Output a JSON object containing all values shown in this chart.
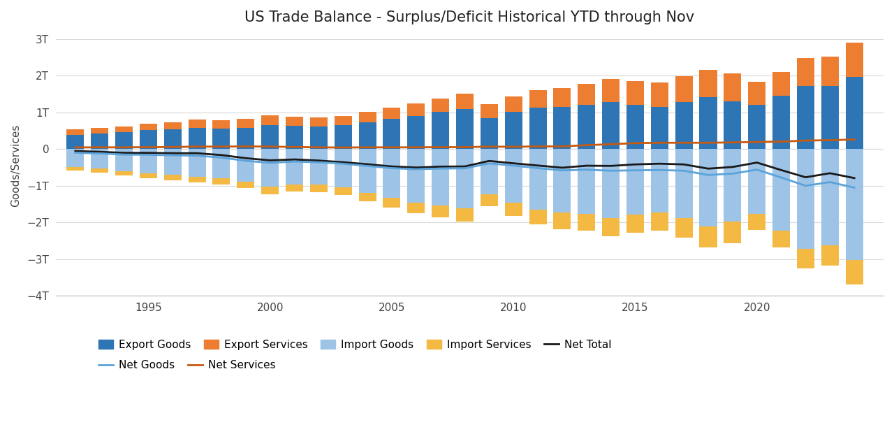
{
  "title": "US Trade Balance - Surplus/Deficit Historical YTD through Nov",
  "ylabel": "Goods/Services",
  "years": [
    1992,
    1993,
    1994,
    1995,
    1996,
    1997,
    1998,
    1999,
    2000,
    2001,
    2002,
    2003,
    2004,
    2005,
    2006,
    2007,
    2008,
    2009,
    2010,
    2011,
    2012,
    2013,
    2014,
    2015,
    2016,
    2017,
    2018,
    2019,
    2020,
    2021,
    2022,
    2023,
    2024
  ],
  "export_goods": [
    390,
    415,
    455,
    510,
    535,
    585,
    565,
    575,
    655,
    625,
    615,
    645,
    725,
    815,
    905,
    1005,
    1085,
    845,
    1005,
    1125,
    1155,
    1205,
    1285,
    1205,
    1155,
    1285,
    1405,
    1305,
    1205,
    1455,
    1720,
    1720,
    1970
  ],
  "export_services": [
    145,
    155,
    165,
    185,
    200,
    220,
    230,
    245,
    265,
    255,
    245,
    255,
    280,
    305,
    335,
    375,
    415,
    380,
    425,
    485,
    515,
    565,
    625,
    655,
    665,
    705,
    745,
    765,
    625,
    645,
    765,
    805,
    920
  ],
  "import_goods": [
    -490,
    -535,
    -605,
    -665,
    -705,
    -765,
    -795,
    -895,
    -1030,
    -965,
    -975,
    -1045,
    -1185,
    -1335,
    -1455,
    -1535,
    -1610,
    -1235,
    -1455,
    -1645,
    -1735,
    -1765,
    -1875,
    -1785,
    -1725,
    -1875,
    -2110,
    -1975,
    -1765,
    -2230,
    -2720,
    -2620,
    -3020
  ],
  "import_services": [
    -100,
    -108,
    -118,
    -133,
    -143,
    -153,
    -163,
    -173,
    -198,
    -198,
    -198,
    -213,
    -233,
    -258,
    -288,
    -323,
    -363,
    -313,
    -363,
    -413,
    -443,
    -458,
    -493,
    -493,
    -493,
    -533,
    -573,
    -583,
    -433,
    -443,
    -533,
    -563,
    -660
  ],
  "net_goods": [
    -100,
    -120,
    -150,
    -155,
    -170,
    -180,
    -230,
    -320,
    -375,
    -340,
    -360,
    -400,
    -460,
    -520,
    -550,
    -530,
    -525,
    -390,
    -450,
    -520,
    -580,
    -560,
    -590,
    -580,
    -570,
    -590,
    -705,
    -670,
    -560,
    -775,
    -1000,
    -900,
    -1050
  ],
  "net_services": [
    45,
    47,
    47,
    52,
    57,
    67,
    67,
    72,
    67,
    57,
    47,
    42,
    47,
    47,
    47,
    52,
    52,
    67,
    62,
    72,
    72,
    107,
    132,
    162,
    172,
    172,
    172,
    182,
    192,
    202,
    232,
    242,
    260
  ],
  "net_total": [
    -55,
    -73,
    -103,
    -103,
    -113,
    -113,
    -163,
    -248,
    -308,
    -283,
    -313,
    -358,
    -413,
    -473,
    -503,
    -478,
    -473,
    -323,
    -388,
    -448,
    -508,
    -453,
    -458,
    -418,
    -398,
    -418,
    -533,
    -488,
    -368,
    -573,
    -768,
    -658,
    -790
  ],
  "colors": {
    "export_goods": "#2E75B6",
    "export_services": "#ED7D31",
    "import_goods": "#9DC3E6",
    "import_services": "#F4B942",
    "net_total": "#1A1A1A",
    "net_goods": "#5BA3D9",
    "net_services": "#C55A11"
  },
  "ylim_min": -4000,
  "ylim_max": 3100,
  "yticks": [
    -4000,
    -3000,
    -2000,
    -1000,
    0,
    1000,
    2000,
    3000
  ],
  "ytick_labels": [
    "−4T",
    "−3T",
    "−2T",
    "−1T",
    "0",
    "1T",
    "2T",
    "3T"
  ],
  "background_color": "#FFFFFF",
  "grid_color": "#D9D9D9",
  "title_fontsize": 15,
  "axis_fontsize": 11,
  "legend_fontsize": 11
}
